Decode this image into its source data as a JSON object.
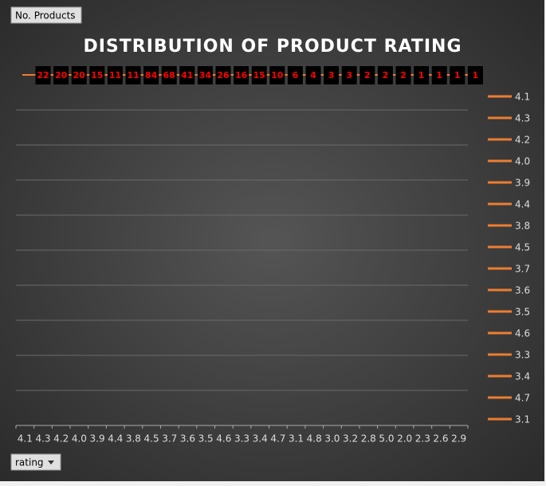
{
  "chart_data": {
    "type": "line",
    "title": "DISTRIBUTION OF PRODUCT RATING",
    "value_field": "No. Products",
    "axis_field": "rating",
    "categories": [
      "4.1",
      "4.3",
      "4.2",
      "4.0",
      "3.9",
      "4.4",
      "3.8",
      "4.5",
      "3.7",
      "3.6",
      "3.5",
      "4.6",
      "3.3",
      "3.4",
      "4.7",
      "3.1",
      "4.8",
      "3.0",
      "3.2",
      "2.8",
      "5.0",
      "2.0",
      "2.3",
      "2.6",
      "2.9"
    ],
    "values": [
      22,
      20,
      20,
      15,
      11,
      11,
      84,
      68,
      41,
      34,
      26,
      16,
      15,
      10,
      6,
      4,
      3,
      3,
      2,
      2,
      2,
      1,
      1,
      1,
      1
    ],
    "color": "#ed7d31",
    "label_color": "#ff0000",
    "legend_entries": 16,
    "legend": "right"
  }
}
